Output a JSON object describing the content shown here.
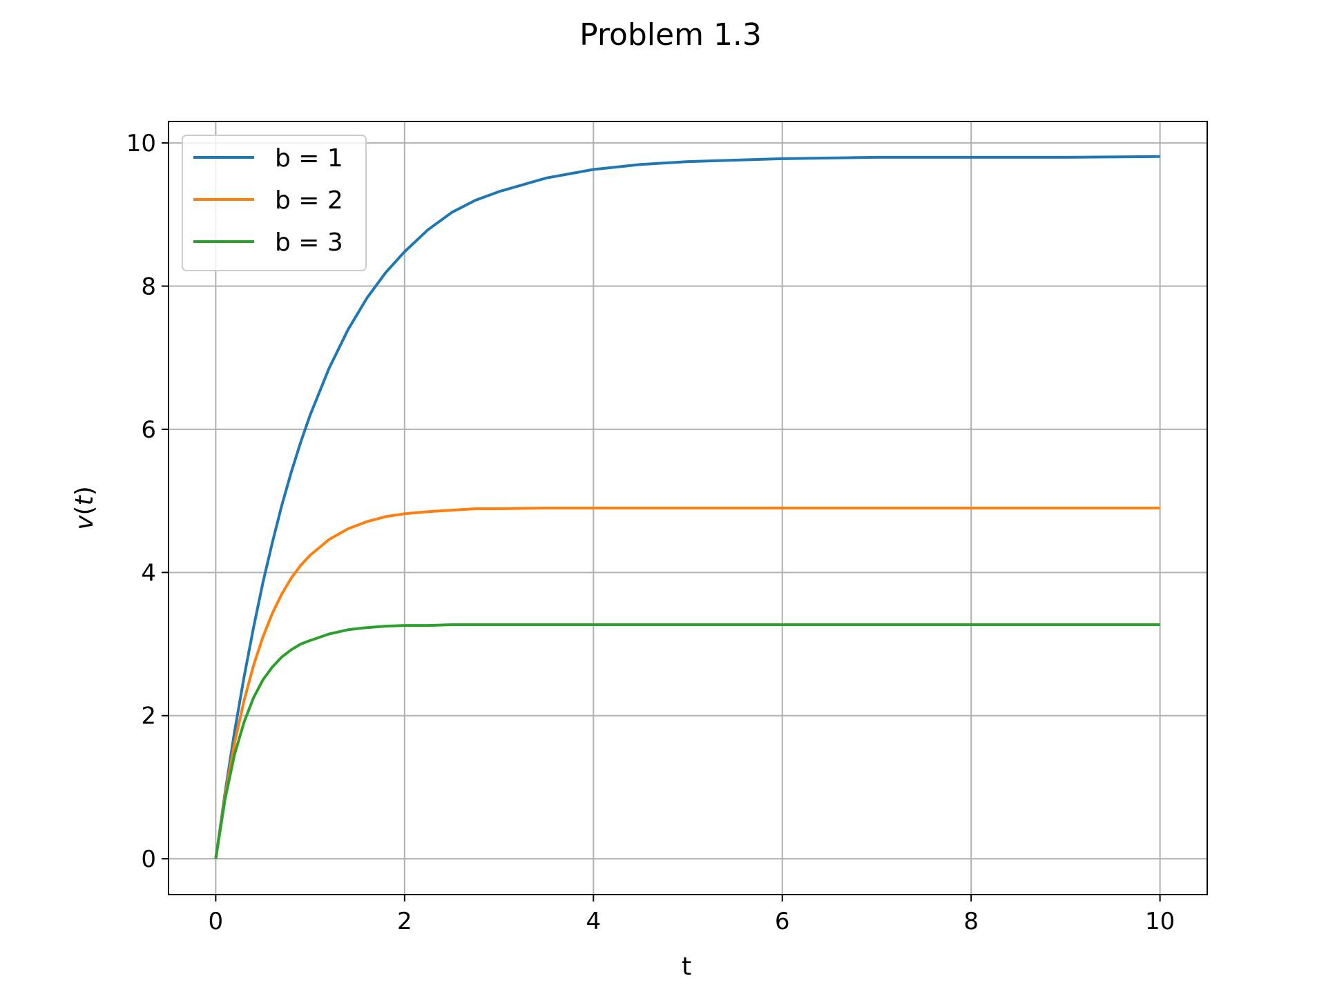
{
  "chart_data": {
    "type": "line",
    "title": "Problem 1.3",
    "xlabel": "t",
    "ylabel_base": "v",
    "ylabel_arg": "t",
    "xlim": [
      -0.5,
      10.5
    ],
    "ylim": [
      -0.5,
      10.3
    ],
    "xticks": [
      0,
      2,
      4,
      6,
      8,
      10
    ],
    "yticks": [
      0,
      2,
      4,
      6,
      8,
      10
    ],
    "xtick_labels": [
      "0",
      "2",
      "4",
      "6",
      "8",
      "10"
    ],
    "ytick_labels": [
      "0",
      "2",
      "4",
      "6",
      "8",
      "10"
    ],
    "grid": true,
    "legend_position": "upper-left",
    "x": [
      0,
      0.1,
      0.2,
      0.3,
      0.4,
      0.5,
      0.6,
      0.7,
      0.8,
      0.9,
      1.0,
      1.2,
      1.4,
      1.6,
      1.8,
      2.0,
      2.25,
      2.5,
      2.75,
      3.0,
      3.5,
      4.0,
      4.5,
      5.0,
      6.0,
      7.0,
      8.0,
      9.0,
      10.0
    ],
    "series": [
      {
        "name": "b = 1",
        "color": "#1f77b4",
        "values": [
          0,
          0.93,
          1.78,
          2.54,
          3.23,
          3.86,
          4.42,
          4.94,
          5.4,
          5.82,
          6.2,
          6.85,
          7.39,
          7.83,
          8.19,
          8.48,
          8.79,
          9.03,
          9.2,
          9.32,
          9.51,
          9.63,
          9.7,
          9.74,
          9.78,
          9.8,
          9.8,
          9.8,
          9.81
        ]
      },
      {
        "name": "b = 2",
        "color": "#ff7f0e",
        "values": [
          0,
          0.89,
          1.62,
          2.21,
          2.7,
          3.1,
          3.43,
          3.7,
          3.92,
          4.1,
          4.24,
          4.46,
          4.61,
          4.71,
          4.78,
          4.82,
          4.85,
          4.87,
          4.89,
          4.89,
          4.9,
          4.9,
          4.9,
          4.9,
          4.9,
          4.9,
          4.9,
          4.9,
          4.9
        ]
      },
      {
        "name": "b = 3",
        "color": "#2ca02c",
        "values": [
          0,
          0.84,
          1.46,
          1.91,
          2.25,
          2.5,
          2.68,
          2.82,
          2.92,
          3.0,
          3.05,
          3.14,
          3.2,
          3.23,
          3.25,
          3.26,
          3.26,
          3.27,
          3.27,
          3.27,
          3.27,
          3.27,
          3.27,
          3.27,
          3.27,
          3.27,
          3.27,
          3.27,
          3.27
        ]
      }
    ]
  }
}
